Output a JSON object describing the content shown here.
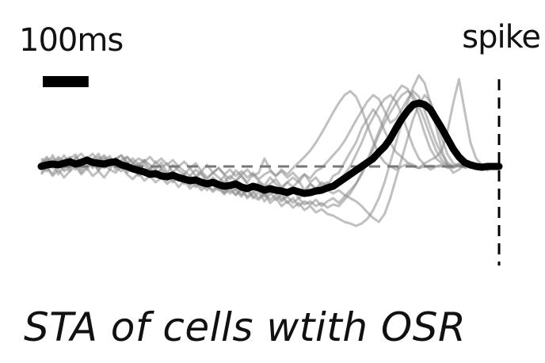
{
  "chart_data": {
    "type": "line",
    "title": "",
    "xlabel": "",
    "ylabel": "",
    "grid": false,
    "x": [
      0,
      1,
      2,
      3,
      4,
      5,
      6,
      7,
      8,
      9,
      10,
      11,
      12,
      13,
      14,
      15,
      16,
      17,
      18,
      19,
      20,
      21,
      22,
      23,
      24,
      25,
      26,
      27,
      28,
      29,
      30,
      31,
      32,
      33,
      34,
      35,
      36,
      37,
      38,
      39,
      40,
      41,
      42,
      43,
      44,
      45,
      46,
      47,
      48,
      49,
      50,
      51,
      52,
      53,
      54,
      55,
      56,
      57,
      58,
      59,
      60,
      61,
      62,
      63,
      64,
      65,
      66,
      67,
      68,
      69,
      70,
      71,
      72,
      73,
      74,
      75,
      76,
      77,
      78,
      79,
      80
    ],
    "xlim": [
      0,
      80
    ],
    "ylim": [
      -1,
      1.2
    ],
    "spike_x": 80,
    "spike_label": "spike",
    "scale_bar_label": "100ms",
    "scale_bar_length": 8,
    "baseline": 0,
    "mean_series": {
      "values": [
        0,
        0.02,
        0.03,
        0.02,
        0.04,
        0.06,
        0.03,
        0.05,
        0.08,
        0.05,
        0.04,
        0.03,
        0.05,
        0.06,
        0.02,
        0,
        -0.03,
        -0.05,
        -0.07,
        -0.1,
        -0.09,
        -0.12,
        -0.13,
        -0.11,
        -0.14,
        -0.16,
        -0.18,
        -0.17,
        -0.2,
        -0.22,
        -0.2,
        -0.23,
        -0.25,
        -0.24,
        -0.22,
        -0.26,
        -0.28,
        -0.25,
        -0.27,
        -0.3,
        -0.28,
        -0.3,
        -0.31,
        -0.33,
        -0.3,
        -0.32,
        -0.34,
        -0.33,
        -0.31,
        -0.3,
        -0.27,
        -0.25,
        -0.2,
        -0.15,
        -0.1,
        -0.05,
        0,
        0.05,
        0.1,
        0.18,
        0.25,
        0.35,
        0.48,
        0.6,
        0.7,
        0.78,
        0.8,
        0.78,
        0.72,
        0.6,
        0.48,
        0.35,
        0.22,
        0.12,
        0.05,
        0.02,
        0,
        -0.01,
        0,
        0,
        0
      ]
    },
    "series": [
      {
        "values": [
          0.05,
          0.12,
          0.02,
          0.08,
          -0.04,
          0.1,
          0.15,
          0.02,
          0.11,
          0.04,
          -0.05,
          0.09,
          0.13,
          0,
          -0.06,
          0.05,
          -0.02,
          -0.1,
          0.04,
          -0.12,
          -0.06,
          -0.15,
          -0.08,
          -0.2,
          -0.12,
          -0.1,
          -0.24,
          -0.15,
          -0.22,
          -0.3,
          -0.18,
          -0.28,
          -0.35,
          -0.22,
          -0.3,
          -0.38,
          -0.26,
          -0.4,
          -0.32,
          -0.44,
          -0.35,
          -0.3,
          -0.42,
          -0.36,
          -0.3,
          -0.4,
          -0.35,
          -0.22,
          -0.28,
          -0.2,
          -0.25,
          -0.12,
          -0.08,
          0.05,
          0.18,
          0.3,
          0.48,
          0.6,
          0.72,
          0.62,
          0.45,
          0.3,
          0.18,
          0.12,
          0.05,
          0.02,
          -0.02,
          0.04,
          0.08,
          0.12,
          0.2,
          0.45,
          0.8,
          1.1,
          0.7,
          0.3,
          0.1,
          0.02,
          -0.05,
          0,
          0.02
        ]
      },
      {
        "values": [
          -0.08,
          0,
          -0.1,
          0.04,
          -0.06,
          -0.02,
          0.06,
          -0.08,
          0.02,
          0.1,
          -0.05,
          0.02,
          0.08,
          -0.04,
          0.06,
          -0.08,
          0,
          -0.12,
          -0.06,
          -0.04,
          -0.14,
          -0.1,
          -0.18,
          -0.08,
          -0.15,
          -0.22,
          -0.12,
          -0.2,
          -0.26,
          -0.18,
          -0.24,
          -0.3,
          -0.26,
          -0.34,
          -0.28,
          -0.36,
          -0.3,
          -0.38,
          -0.42,
          -0.34,
          -0.46,
          -0.4,
          -0.5,
          -0.44,
          -0.52,
          -0.46,
          -0.55,
          -0.5,
          -0.58,
          -0.54,
          -0.6,
          -0.62,
          -0.66,
          -0.7,
          -0.72,
          -0.75,
          -0.72,
          -0.66,
          -0.55,
          -0.4,
          -0.2,
          0.05,
          0.3,
          0.55,
          0.8,
          1,
          1.15,
          1.05,
          0.8,
          0.5,
          0.2,
          0.02,
          -0.08,
          -0.04,
          0.02,
          0,
          -0.02,
          0.01,
          0,
          0,
          0
        ]
      },
      {
        "values": [
          0.1,
          0.04,
          0.14,
          0.02,
          0.08,
          0.12,
          0.02,
          0.1,
          0.06,
          -0.02,
          0.08,
          0.14,
          0.05,
          0.1,
          0.02,
          0.12,
          0.05,
          -0.02,
          0.08,
          0.02,
          -0.04,
          0.05,
          -0.08,
          0.02,
          -0.05,
          -0.1,
          -0.02,
          -0.12,
          -0.06,
          -0.14,
          -0.08,
          -0.02,
          -0.1,
          -0.16,
          -0.05,
          -0.12,
          -0.2,
          -0.1,
          -0.18,
          -0.24,
          -0.14,
          -0.22,
          -0.28,
          -0.2,
          -0.26,
          -0.18,
          -0.3,
          -0.22,
          -0.28,
          -0.25,
          -0.3,
          -0.34,
          -0.3,
          -0.36,
          -0.4,
          -0.44,
          -0.5,
          -0.58,
          -0.65,
          -0.7,
          -0.6,
          -0.4,
          -0.15,
          0.1,
          0.35,
          0.6,
          0.78,
          0.9,
          0.82,
          0.6,
          0.35,
          0.15,
          0.04,
          0,
          0.03,
          -0.02,
          0.02,
          0,
          -0.01,
          0,
          0
        ]
      },
      {
        "values": [
          -0.04,
          0.08,
          -0.02,
          0.1,
          0.04,
          -0.06,
          0.12,
          0.05,
          -0.04,
          0.08,
          0.16,
          0.02,
          -0.04,
          0.1,
          0.14,
          0.06,
          -0.05,
          0.04,
          -0.08,
          -0.02,
          -0.1,
          -0.04,
          -0.14,
          -0.06,
          -0.18,
          -0.1,
          -0.2,
          -0.14,
          -0.08,
          -0.22,
          -0.14,
          -0.2,
          -0.12,
          -0.26,
          -0.18,
          -0.12,
          -0.22,
          -0.3,
          -0.2,
          -0.26,
          -0.22,
          -0.16,
          -0.26,
          -0.2,
          -0.14,
          -0.2,
          -0.1,
          -0.15,
          -0.06,
          -0.02,
          0.06,
          0.14,
          0.22,
          0.32,
          0.45,
          0.58,
          0.7,
          0.82,
          0.9,
          0.85,
          0.7,
          0.55,
          0.6,
          0.72,
          0.85,
          0.95,
          0.88,
          0.7,
          0.5,
          0.3,
          0.15,
          0.05,
          0,
          0.04,
          -0.02,
          0,
          0.01,
          0,
          0,
          0,
          0
        ]
      },
      {
        "values": [
          0,
          -0.06,
          0.05,
          -0.1,
          0.02,
          0.08,
          -0.04,
          0.06,
          0.12,
          0.02,
          0.08,
          -0.02,
          0.04,
          0.1,
          0.02,
          -0.04,
          0.04,
          -0.02,
          -0.1,
          -0.05,
          -0.12,
          -0.02,
          -0.1,
          -0.16,
          -0.1,
          -0.2,
          -0.14,
          -0.26,
          -0.18,
          -0.24,
          -0.3,
          -0.22,
          -0.32,
          -0.26,
          -0.36,
          -0.3,
          -0.4,
          -0.34,
          -0.28,
          -0.38,
          -0.32,
          -0.42,
          -0.36,
          -0.46,
          -0.4,
          -0.5,
          -0.44,
          -0.48,
          -0.42,
          -0.5,
          -0.44,
          -0.4,
          -0.46,
          -0.38,
          -0.3,
          -0.22,
          -0.1,
          0.05,
          0.22,
          0.4,
          0.55,
          0.68,
          0.8,
          0.9,
          0.95,
          0.9,
          0.76,
          0.58,
          0.38,
          0.2,
          0.08,
          0.02,
          -0.02,
          0.02,
          0,
          0.01,
          0,
          0,
          0,
          0,
          0
        ]
      },
      {
        "values": [
          0.06,
          -0.02,
          0.1,
          0.04,
          0.14,
          0.02,
          0.08,
          -0.04,
          0.1,
          0.16,
          0.06,
          0.12,
          0,
          0.08,
          0.14,
          0.04,
          0.1,
          0.02,
          0.08,
          -0.04,
          0.06,
          -0.02,
          0.04,
          -0.08,
          0,
          -0.06,
          -0.12,
          -0.04,
          -0.1,
          -0.16,
          -0.08,
          -0.14,
          -0.2,
          -0.12,
          -0.18,
          -0.1,
          -0.04,
          -0.12,
          -0.08,
          0.1,
          -0.04,
          -0.12,
          -0.06,
          -0.14,
          -0.08,
          -0.16,
          -0.1,
          -0.2,
          -0.14,
          -0.24,
          -0.2,
          -0.26,
          -0.18,
          -0.1,
          0,
          0.15,
          0.3,
          0.48,
          0.62,
          0.75,
          0.85,
          0.9,
          0.82,
          0.65,
          0.45,
          0.25,
          0.1,
          0.02,
          -0.04,
          0,
          0.02,
          -0.02,
          0,
          0.01,
          0,
          0,
          0,
          0,
          0,
          0,
          0
        ]
      },
      {
        "values": [
          -0.1,
          -0.02,
          -0.12,
          -0.04,
          -0.14,
          -0.06,
          0,
          -0.1,
          -0.02,
          -0.12,
          -0.06,
          -0.14,
          -0.04,
          -0.08,
          0,
          -0.1,
          -0.16,
          -0.08,
          -0.18,
          -0.12,
          -0.2,
          -0.14,
          -0.22,
          -0.16,
          -0.26,
          -0.18,
          -0.28,
          -0.22,
          -0.3,
          -0.24,
          -0.32,
          -0.26,
          -0.34,
          -0.3,
          -0.36,
          -0.28,
          -0.38,
          -0.32,
          -0.4,
          -0.34,
          -0.42,
          -0.36,
          -0.44,
          -0.38,
          -0.46,
          -0.4,
          -0.48,
          -0.44,
          -0.5,
          -0.46,
          -0.52,
          -0.48,
          -0.5,
          -0.42,
          -0.34,
          -0.22,
          -0.08,
          0.08,
          0.26,
          0.44,
          0.62,
          0.78,
          0.92,
          1.02,
          0.98,
          0.85,
          0.65,
          0.42,
          0.22,
          0.1,
          0.04,
          0.02,
          0,
          0.02,
          0,
          0,
          0,
          0,
          0,
          0,
          0
        ]
      },
      {
        "values": [
          0.02,
          0.1,
          0.04,
          0.12,
          0.06,
          0,
          0.1,
          0.16,
          0.08,
          0,
          0.12,
          0.06,
          0.1,
          0.02,
          0.08,
          0.12,
          0.04,
          0.1,
          0.06,
          0.12,
          0.04,
          0.1,
          0.02,
          0.08,
          0,
          0.06,
          -0.02,
          0.04,
          -0.06,
          0.02,
          -0.08,
          -0.02,
          -0.1,
          -0.04,
          -0.12,
          -0.06,
          -0.14,
          -0.08,
          -0.16,
          -0.1,
          -0.06,
          -0.12,
          -0.04,
          -0.1,
          -0.02,
          0.05,
          0.12,
          0.2,
          0.3,
          0.42,
          0.55,
          0.68,
          0.8,
          0.9,
          0.95,
          0.88,
          0.72,
          0.52,
          0.32,
          0.15,
          0.05,
          0,
          -0.04,
          0,
          0.03,
          0,
          -0.02,
          0,
          0.01,
          0,
          0,
          0,
          0,
          0,
          0,
          0,
          0,
          0,
          0,
          0,
          0
        ]
      }
    ]
  },
  "labels": {
    "scale_bar": "100ms",
    "spike": "spike",
    "caption": "STA of cells wtith OSR"
  },
  "colors": {
    "background": "#ffffff",
    "mean_line": "#000000",
    "individual_lines": "#8c8c8c",
    "baseline": "#777777",
    "spike_marker": "#000000"
  }
}
